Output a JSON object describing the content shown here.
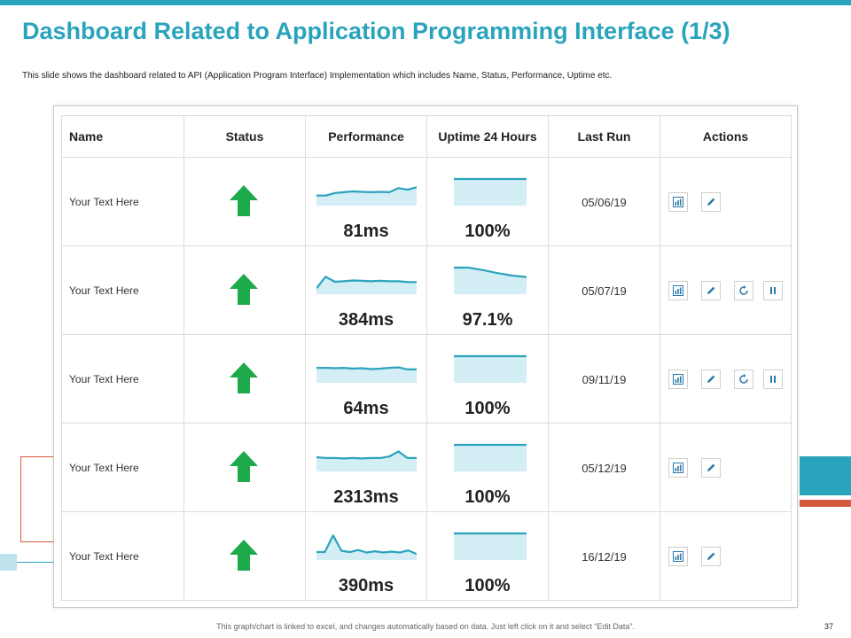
{
  "title": "Dashboard Related to Application Programming Interface (1/3)",
  "subtitle": "This slide shows the dashboard related to API (Application Program Interface) Implementation  which includes Name, Status, Performance, Uptime etc.",
  "colors": {
    "accent": "#2aa3bd",
    "secondary": "#d65a3c",
    "status_up": "#1daa4a",
    "chart_fill": "#d3eef4",
    "chart_line": "#2aa3bd"
  },
  "table": {
    "headers": {
      "name": "Name",
      "status": "Status",
      "performance": "Performance",
      "uptime": "Uptime 24 Hours",
      "last_run": "Last Run",
      "actions": "Actions"
    },
    "rows": [
      {
        "name": "Your Text Here",
        "status_icon": "up-arrow-icon",
        "performance": "81ms",
        "uptime": "100%",
        "last_run": "05/06/19",
        "perf_series": [
          50,
          50,
          56,
          58,
          60,
          59,
          58,
          59,
          58,
          68,
          64,
          70
        ],
        "uptime_series": [
          100,
          100,
          100,
          100,
          100
        ],
        "actions": [
          "chart-icon",
          "edit-icon"
        ]
      },
      {
        "name": "Your Text Here",
        "status_icon": "up-arrow-icon",
        "performance": "384ms",
        "uptime": "97.1%",
        "last_run": "05/07/19",
        "perf_series": [
          40,
          68,
          56,
          57,
          59,
          58,
          57,
          58,
          57,
          57,
          55,
          55
        ],
        "uptime_series": [
          100,
          100,
          90,
          78,
          68,
          62
        ],
        "actions": [
          "chart-icon",
          "edit-icon",
          "refresh-icon",
          "pause-icon"
        ]
      },
      {
        "name": "Your Text Here",
        "status_icon": "up-arrow-icon",
        "performance": "64ms",
        "uptime": "100%",
        "last_run": "09/11/19",
        "perf_series": [
          62,
          62,
          61,
          62,
          60,
          61,
          59,
          60,
          62,
          63,
          58,
          58
        ],
        "uptime_series": [
          100,
          100,
          100,
          100,
          100
        ],
        "actions": [
          "chart-icon",
          "edit-icon",
          "refresh-icon",
          "pause-icon"
        ]
      },
      {
        "name": "Your Text Here",
        "status_icon": "up-arrow-icon",
        "performance": "2313ms",
        "uptime": "100%",
        "last_run": "05/12/19",
        "perf_series": [
          60,
          58,
          58,
          57,
          58,
          57,
          58,
          58,
          62,
          74,
          58,
          58
        ],
        "uptime_series": [
          100,
          100,
          100,
          100,
          100
        ],
        "actions": [
          "chart-icon",
          "edit-icon"
        ]
      },
      {
        "name": "Your Text Here",
        "status_icon": "up-arrow-icon",
        "performance": "390ms",
        "uptime": "100%",
        "last_run": "16/12/19",
        "perf_series": [
          45,
          45,
          85,
          48,
          45,
          50,
          44,
          47,
          44,
          46,
          44,
          49,
          40
        ],
        "uptime_series": [
          100,
          100,
          100,
          100,
          100
        ],
        "actions": [
          "chart-icon",
          "edit-icon"
        ]
      }
    ]
  },
  "footer": "This graph/chart is linked to excel, and changes automatically based on data. Just left click on it and select “Edit Data”.",
  "page_number": "37"
}
